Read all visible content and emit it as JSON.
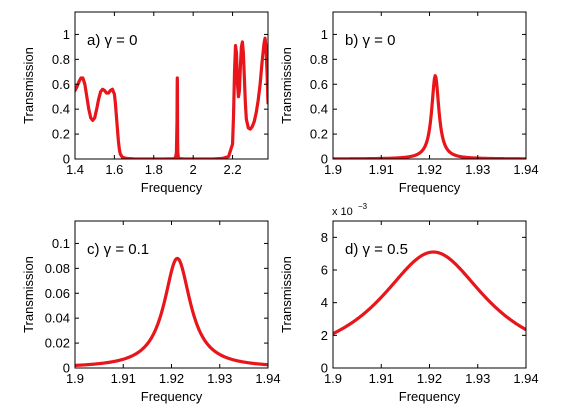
{
  "chart_data": [
    {
      "type": "line",
      "panel_label": "a) γ = 0",
      "xlabel": "Frequency",
      "ylabel": "Transmission",
      "xlim": [
        1.4,
        2.38
      ],
      "ylim": [
        0,
        1.18
      ],
      "xticks": [
        1.4,
        1.6,
        1.8,
        2.0,
        2.2
      ],
      "xtick_labels": [
        "1.4",
        "1.6",
        "1.8",
        "2",
        "2.2"
      ],
      "yticks": [
        0,
        0.2,
        0.4,
        0.6,
        0.8,
        1.0
      ],
      "ytick_labels": [
        "0",
        "0.2",
        "0.4",
        "0.6",
        "0.8",
        "1"
      ],
      "grid": false,
      "series_color": "#e8151b",
      "series": [
        {
          "x": [
            1.4,
            1.41,
            1.42,
            1.43,
            1.44,
            1.45,
            1.46,
            1.47,
            1.48,
            1.49,
            1.5,
            1.51,
            1.52,
            1.53,
            1.54,
            1.55,
            1.56,
            1.57,
            1.58,
            1.59,
            1.6,
            1.605,
            1.61,
            1.615,
            1.62,
            1.625,
            1.63,
            1.64,
            1.66,
            1.7,
            1.75,
            1.8,
            1.85,
            1.9,
            1.91,
            1.915,
            1.918,
            1.919,
            1.9195,
            1.92,
            1.9205,
            1.921,
            1.922,
            1.925,
            1.93,
            1.95,
            2.0,
            2.05,
            2.1,
            2.15,
            2.18,
            2.2,
            2.205,
            2.21,
            2.215,
            2.22,
            2.225,
            2.23,
            2.235,
            2.24,
            2.245,
            2.25,
            2.255,
            2.26,
            2.265,
            2.27,
            2.28,
            2.29,
            2.3,
            2.31,
            2.32,
            2.33,
            2.34,
            2.35,
            2.36,
            2.365,
            2.37,
            2.375,
            2.38
          ],
          "y": [
            0.55,
            0.58,
            0.62,
            0.65,
            0.65,
            0.6,
            0.5,
            0.4,
            0.33,
            0.31,
            0.33,
            0.4,
            0.48,
            0.54,
            0.56,
            0.55,
            0.53,
            0.53,
            0.55,
            0.56,
            0.52,
            0.45,
            0.35,
            0.25,
            0.15,
            0.08,
            0.04,
            0.015,
            0.005,
            0.001,
            0.0,
            0.0,
            0.0,
            0.002,
            0.01,
            0.05,
            0.3,
            0.6,
            0.65,
            0.6,
            0.35,
            0.15,
            0.05,
            0.01,
            0.003,
            0.001,
            0.0,
            0.0,
            0.0,
            0.005,
            0.02,
            0.12,
            0.35,
            0.7,
            0.91,
            0.85,
            0.6,
            0.5,
            0.55,
            0.75,
            0.9,
            0.94,
            0.85,
            0.65,
            0.45,
            0.32,
            0.25,
            0.24,
            0.26,
            0.3,
            0.37,
            0.47,
            0.6,
            0.78,
            0.93,
            0.97,
            0.9,
            0.7,
            0.45
          ]
        }
      ]
    },
    {
      "type": "line",
      "panel_label": "b) γ = 0",
      "xlabel": "Frequency",
      "ylabel": "Transmission",
      "xlim": [
        1.9,
        1.94
      ],
      "ylim": [
        0,
        1.18
      ],
      "xticks": [
        1.9,
        1.91,
        1.92,
        1.93,
        1.94
      ],
      "xtick_labels": [
        "1.9",
        "1.91",
        "1.92",
        "1.93",
        "1.94"
      ],
      "yticks": [
        0,
        0.2,
        0.4,
        0.6,
        0.8,
        1.0
      ],
      "ytick_labels": [
        "0",
        "0.2",
        "0.4",
        "0.6",
        "0.8",
        "1"
      ],
      "grid": false,
      "series_color": "#e8151b",
      "lorentzian": {
        "center": 1.9212,
        "peak": 0.67,
        "halfwidth": 0.0009,
        "baseline": 0.0
      }
    },
    {
      "type": "line",
      "panel_label": "c) γ = 0.1",
      "xlabel": "Frequency",
      "ylabel": "Transmission",
      "xlim": [
        1.9,
        1.94
      ],
      "ylim": [
        0,
        0.118
      ],
      "xticks": [
        1.9,
        1.91,
        1.92,
        1.93,
        1.94
      ],
      "xtick_labels": [
        "1.9",
        "1.91",
        "1.92",
        "1.93",
        "1.94"
      ],
      "yticks": [
        0,
        0.02,
        0.04,
        0.06,
        0.08,
        0.1
      ],
      "ytick_labels": [
        "0",
        "0.02",
        "0.04",
        "0.06",
        "0.08",
        "0.1"
      ],
      "grid": false,
      "series_color": "#e8151b",
      "lorentzian": {
        "center": 1.9212,
        "peak": 0.088,
        "halfwidth": 0.0033,
        "baseline": 0.0
      }
    },
    {
      "type": "line",
      "panel_label": "d) γ = 0.5",
      "xlabel": "Frequency",
      "ylabel": "Transmission",
      "exponent_label": "x 10",
      "exponent_power": "−3",
      "xlim": [
        1.9,
        1.94
      ],
      "ylim": [
        0,
        9
      ],
      "xticks": [
        1.9,
        1.91,
        1.92,
        1.93,
        1.94
      ],
      "xtick_labels": [
        "1.9",
        "1.91",
        "1.92",
        "1.93",
        "1.94"
      ],
      "yticks": [
        0,
        2,
        4,
        6,
        8
      ],
      "ytick_labels": [
        "0",
        "2",
        "4",
        "6",
        "8"
      ],
      "grid": false,
      "series_color": "#e8151b",
      "lorentzian": {
        "center": 1.9208,
        "peak": 7.1,
        "halfwidth": 0.0135,
        "baseline": 0.0
      }
    }
  ]
}
